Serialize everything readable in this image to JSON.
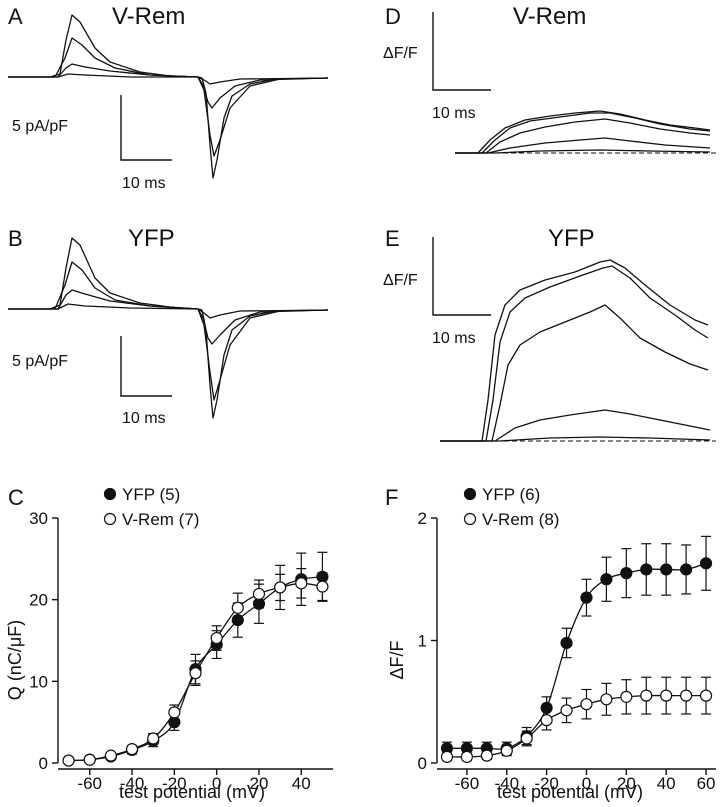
{
  "panels": {
    "A": {
      "letter": "A",
      "title": "V-Rem",
      "scale_y": "5 pA/pF",
      "scale_x": "10 ms"
    },
    "B": {
      "letter": "B",
      "title": "YFP",
      "scale_y": "5 pA/pF",
      "scale_x": "10 ms"
    },
    "D": {
      "letter": "D",
      "title": "V-Rem",
      "scale_y": "ΔF/F",
      "scale_x": "10 ms"
    },
    "E": {
      "letter": "E",
      "title": "YFP",
      "scale_y": "ΔF/F",
      "scale_x": "10 ms"
    }
  },
  "chart_data": [
    {
      "id": "C",
      "letter": "C",
      "type": "scatter",
      "xlabel": "test potential (mV)",
      "ylabel": "Q (nC/μF)",
      "xlim": [
        -75,
        55
      ],
      "ylim": [
        0,
        30
      ],
      "xticks": [
        -60,
        -40,
        -20,
        0,
        20,
        40
      ],
      "xtick_labels": [
        "-60",
        "-40",
        "-20",
        "0",
        "20",
        "40"
      ],
      "yticks": [
        0,
        10,
        20,
        30
      ],
      "ytick_labels": [
        "0",
        "10",
        "20",
        "30"
      ],
      "legend": "top-left",
      "series": [
        {
          "name": "YFP (5)",
          "marker": "filled",
          "x": [
            -70,
            -60,
            -50,
            -40,
            -30,
            -20,
            -10,
            0,
            10,
            20,
            30,
            40,
            50
          ],
          "y": [
            0.3,
            0.4,
            0.8,
            1.6,
            2.7,
            5.0,
            11.5,
            14.5,
            17.5,
            19.5,
            21.5,
            22.5,
            22.8
          ],
          "err": [
            0.3,
            0.3,
            0.4,
            0.5,
            0.7,
            1.0,
            1.8,
            1.7,
            2.1,
            2.4,
            2.7,
            3.2,
            3.0
          ]
        },
        {
          "name": "V-Rem (7)",
          "marker": "open",
          "x": [
            -70,
            -60,
            -50,
            -40,
            -30,
            -20,
            -10,
            0,
            10,
            20,
            30,
            40,
            50
          ],
          "y": [
            0.3,
            0.4,
            0.9,
            1.7,
            3.0,
            6.2,
            11.0,
            15.3,
            19.0,
            20.7,
            21.5,
            22.0,
            21.6
          ],
          "err": [
            0.3,
            0.3,
            0.3,
            0.4,
            0.6,
            0.9,
            1.5,
            1.5,
            1.8,
            1.7,
            1.6,
            1.8,
            1.7
          ]
        }
      ]
    },
    {
      "id": "F",
      "letter": "F",
      "type": "scatter",
      "xlabel": "test potential (mV)",
      "ylabel": "ΔF/F",
      "xlim": [
        -75,
        65
      ],
      "ylim": [
        0,
        2
      ],
      "xticks": [
        -60,
        -40,
        -20,
        0,
        20,
        40,
        60
      ],
      "xtick_labels": [
        "-60",
        "-40",
        "-20",
        "0",
        "20",
        "40",
        "60"
      ],
      "yticks": [
        0,
        1,
        2
      ],
      "ytick_labels": [
        "0",
        "1",
        "2"
      ],
      "legend": "top-left",
      "series": [
        {
          "name": "YFP (6)",
          "marker": "filled",
          "x": [
            -70,
            -60,
            -50,
            -40,
            -30,
            -20,
            -10,
            0,
            10,
            20,
            30,
            40,
            50,
            60
          ],
          "y": [
            0.12,
            0.12,
            0.12,
            0.12,
            0.22,
            0.45,
            0.98,
            1.35,
            1.5,
            1.55,
            1.58,
            1.58,
            1.58,
            1.63
          ],
          "err": [
            0.05,
            0.05,
            0.05,
            0.05,
            0.07,
            0.09,
            0.12,
            0.15,
            0.18,
            0.2,
            0.21,
            0.21,
            0.2,
            0.22
          ]
        },
        {
          "name": "V-Rem (8)",
          "marker": "open",
          "x": [
            -70,
            -60,
            -50,
            -40,
            -30,
            -20,
            -10,
            0,
            10,
            20,
            30,
            40,
            50,
            60
          ],
          "y": [
            0.05,
            0.05,
            0.06,
            0.1,
            0.2,
            0.35,
            0.43,
            0.48,
            0.52,
            0.54,
            0.55,
            0.55,
            0.55,
            0.55
          ],
          "err": [
            0.03,
            0.03,
            0.03,
            0.04,
            0.06,
            0.08,
            0.1,
            0.12,
            0.13,
            0.14,
            0.15,
            0.15,
            0.15,
            0.15
          ]
        }
      ]
    }
  ]
}
